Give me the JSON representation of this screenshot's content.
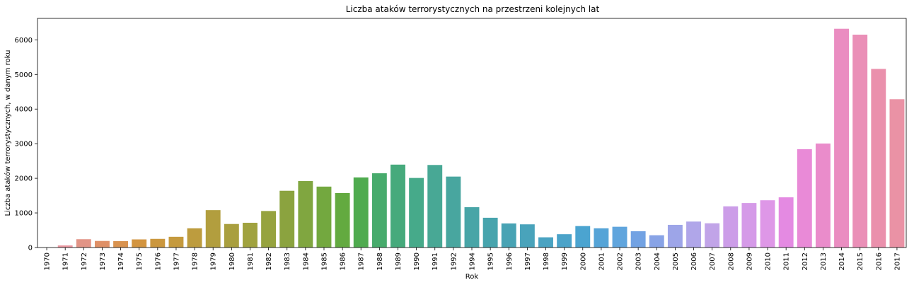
{
  "chart_data": {
    "type": "bar",
    "title": "Liczba ataków terrorystycznych na przestrzeni kolejnych lat",
    "xlabel": "Rok",
    "ylabel": "Liczba ataków terrorystycznych, w danym roku",
    "ylim": [
      0,
      6620
    ],
    "yticks": [
      0,
      1000,
      2000,
      3000,
      4000,
      5000,
      6000
    ],
    "grid": false,
    "legend": "none",
    "categories": [
      "1970",
      "1971",
      "1972",
      "1973",
      "1974",
      "1975",
      "1976",
      "1977",
      "1978",
      "1979",
      "1980",
      "1981",
      "1982",
      "1983",
      "1984",
      "1985",
      "1986",
      "1987",
      "1988",
      "1989",
      "1990",
      "1991",
      "1992",
      "1994",
      "1995",
      "1996",
      "1997",
      "1998",
      "1999",
      "2000",
      "2001",
      "2002",
      "2003",
      "2004",
      "2005",
      "2006",
      "2007",
      "2008",
      "2009",
      "2010",
      "2011",
      "2012",
      "2013",
      "2014",
      "2015",
      "2016",
      "2017"
    ],
    "values": [
      0,
      60,
      240,
      190,
      185,
      235,
      250,
      310,
      555,
      1080,
      680,
      715,
      1055,
      1640,
      1920,
      1760,
      1575,
      2025,
      2145,
      2395,
      2010,
      2385,
      2050,
      1165,
      860,
      695,
      670,
      295,
      385,
      620,
      555,
      600,
      470,
      355,
      655,
      750,
      700,
      1190,
      1285,
      1365,
      1450,
      2840,
      3005,
      6320,
      6150,
      5160,
      4285
    ],
    "colors": [
      "#ea97a0",
      "#ea97a0",
      "#e29486",
      "#df9067",
      "#d99350",
      "#d39540",
      "#cb973e",
      "#c59a3e",
      "#bd9c3e",
      "#b29e3e",
      "#a99f3f",
      "#a0a23f",
      "#96a33f",
      "#8ba33f",
      "#80a640",
      "#73a83f",
      "#63aa40",
      "#4fab4f",
      "#47ab6c",
      "#46aa7c",
      "#46aa8a",
      "#48a895",
      "#48a69f",
      "#48a5a7",
      "#47a4ad",
      "#48a3b4",
      "#49a3bb",
      "#4aa3c2",
      "#4ba3c9",
      "#4ba4d0",
      "#55a4d7",
      "#60a5dd",
      "#72a2e3",
      "#88a3e6",
      "#9da5e8",
      "#b0a6e9",
      "#c1a4e8",
      "#cc9de8",
      "#d59ae8",
      "#de97e7",
      "#e48ae2",
      "#e98ad7",
      "#ea8ccb",
      "#ea8dc1",
      "#ea8fb7",
      "#ea90ac",
      "#ea92a5"
    ]
  }
}
